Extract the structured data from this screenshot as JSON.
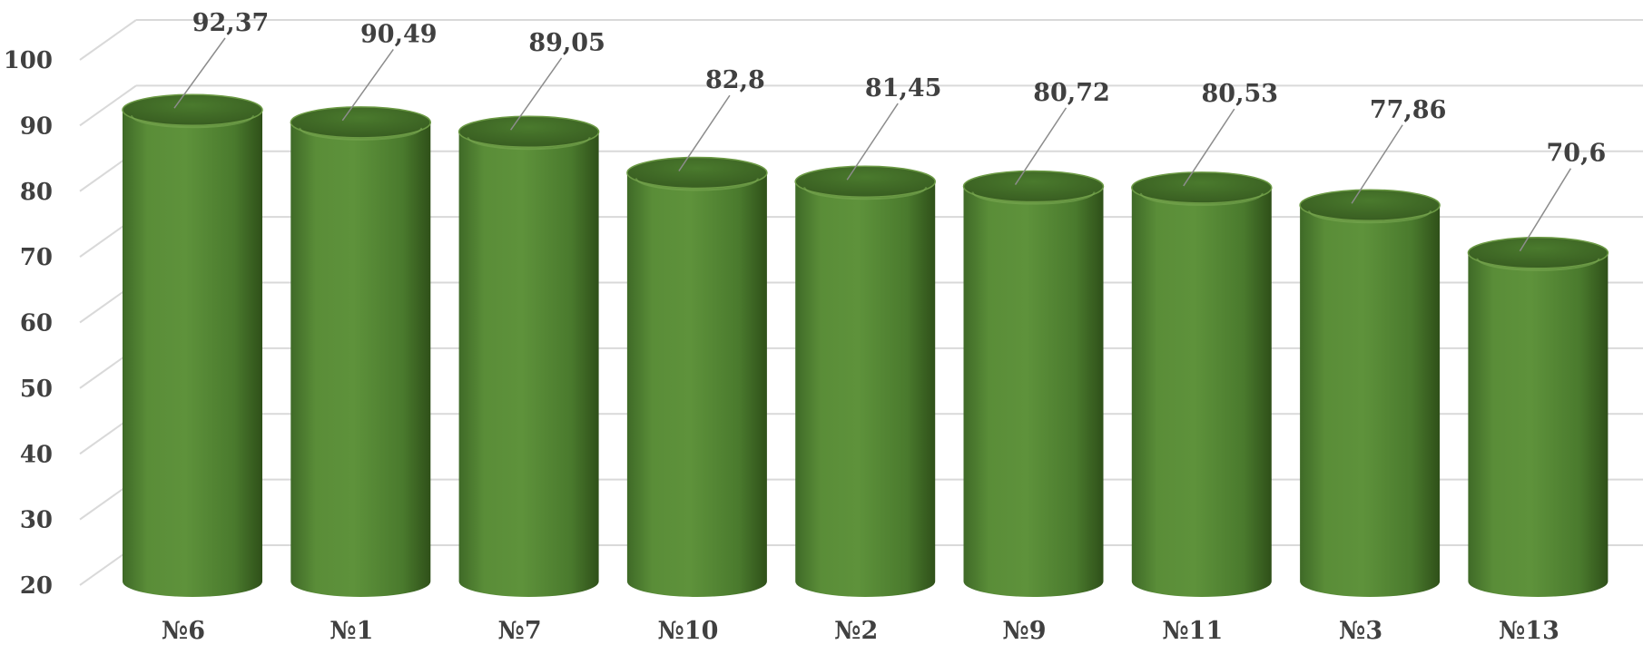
{
  "chart_data": {
    "type": "bar",
    "style": "3d-cylinder",
    "categories": [
      "№6",
      "№1",
      "№7",
      "№10",
      "№2",
      "№9",
      "№11",
      "№3",
      "№13"
    ],
    "series": [
      {
        "values": [
          92.37,
          90.49,
          89.05,
          82.8,
          81.45,
          80.72,
          80.53,
          77.86,
          70.6
        ],
        "value_labels": [
          "92,37",
          "90,49",
          "89,05",
          "82,8",
          "81,45",
          "80,72",
          "80,53",
          "77,86",
          "70,6"
        ]
      }
    ],
    "yticks": [
      "20",
      "30",
      "40",
      "50",
      "60",
      "70",
      "80",
      "90",
      "100"
    ],
    "ylim": [
      20,
      100
    ],
    "grid": true,
    "legend": "none",
    "colors": {
      "bar": "#548235",
      "bar_dark": "#375623",
      "bar_light": "#6c9a45",
      "grid": "#d9d9d9",
      "text": "#404040"
    }
  }
}
